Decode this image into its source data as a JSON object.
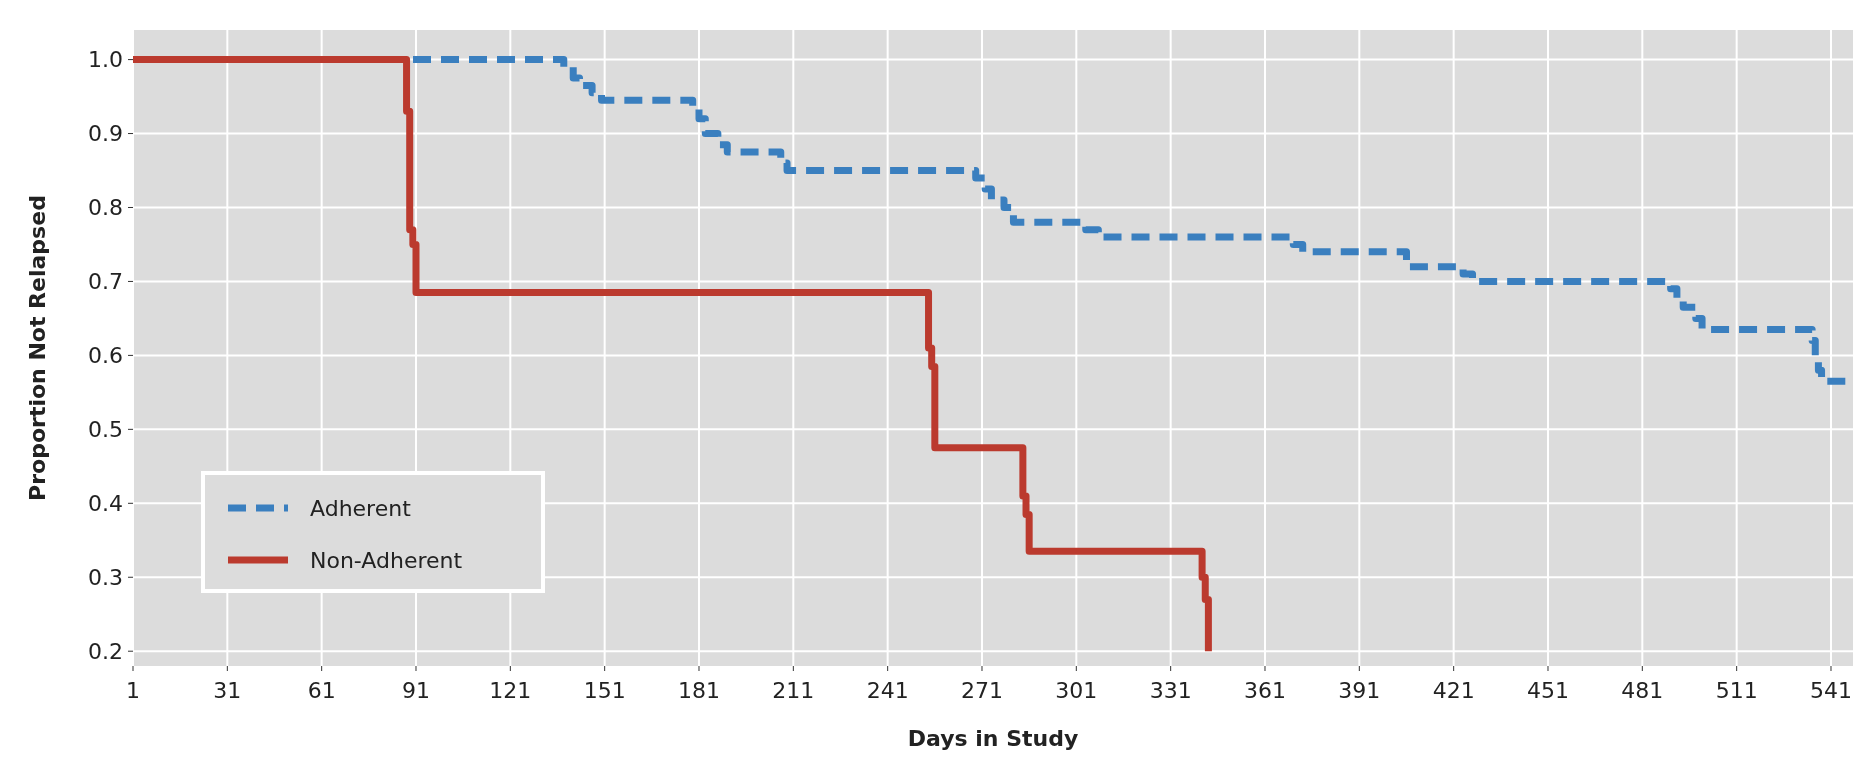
{
  "chart_data": {
    "type": "step",
    "xlabel": "Days in Study",
    "ylabel": "Proportion Not Relapsed",
    "xlim": [
      1,
      548
    ],
    "ylim": [
      0.18,
      1.04
    ],
    "xticks": [
      1,
      31,
      61,
      91,
      121,
      151,
      181,
      211,
      241,
      271,
      301,
      331,
      361,
      391,
      421,
      451,
      481,
      511,
      541
    ],
    "yticks": [
      0.2,
      0.3,
      0.4,
      0.5,
      0.6,
      0.7,
      0.8,
      0.9,
      {
        "value": 1,
        "label": "1.0"
      }
    ],
    "grid": true,
    "legend": "bottom left",
    "series": [
      {
        "name": "Adherent",
        "color": "#3a7fbf",
        "line_style": "dashed",
        "x": [
          1,
          138,
          141,
          143,
          147,
          150,
          179,
          181,
          183,
          187,
          190,
          207,
          209,
          269,
          272,
          274,
          278,
          281,
          304,
          308,
          370,
          373,
          406,
          424,
          427,
          490,
          492,
          494,
          498,
          500,
          535,
          536,
          537,
          538,
          548
        ],
        "values": [
          1,
          0.99,
          0.975,
          0.965,
          0.955,
          0.945,
          0.935,
          0.92,
          0.9,
          0.885,
          0.875,
          0.86,
          0.85,
          0.84,
          0.825,
          0.81,
          0.8,
          0.78,
          0.77,
          0.76,
          0.75,
          0.74,
          0.72,
          0.71,
          0.7,
          0.69,
          0.675,
          0.665,
          0.65,
          0.635,
          0.62,
          0.6,
          0.58,
          0.565,
          0.565
        ]
      },
      {
        "name": "Non-Adherent",
        "color": "#bb3a2e",
        "line_style": "solid",
        "x": [
          1,
          88,
          89,
          90,
          91,
          254,
          255,
          256,
          284,
          285,
          286,
          341,
          342,
          343
        ],
        "values": [
          1,
          0.93,
          0.77,
          0.75,
          0.685,
          0.61,
          0.585,
          0.475,
          0.41,
          0.385,
          0.335,
          0.3,
          0.27,
          0.2
        ]
      }
    ]
  }
}
